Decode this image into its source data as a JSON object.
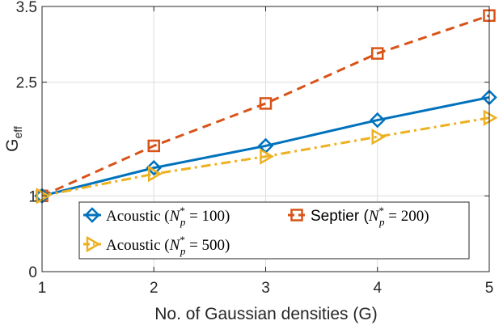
{
  "chart_data": {
    "type": "line",
    "x": [
      1,
      2,
      3,
      4,
      5
    ],
    "series": [
      {
        "name": "Acoustic",
        "legend_sup": "*",
        "legend_sub": "p",
        "legend_value": "100",
        "values": [
          1.0,
          1.37,
          1.66,
          2.0,
          2.3
        ],
        "color": "#0072BD",
        "marker": "diamond",
        "dash": "solid"
      },
      {
        "name": "Septier",
        "legend_sup": "*",
        "legend_sub": "p",
        "legend_value": "200",
        "values": [
          1.0,
          1.66,
          2.22,
          2.88,
          3.38
        ],
        "color": "#D95319",
        "marker": "square",
        "dash": "dashed"
      },
      {
        "name": "Acoustic",
        "legend_sup": "*",
        "legend_sub": "p",
        "legend_value": "500",
        "values": [
          1.0,
          1.29,
          1.52,
          1.78,
          2.03
        ],
        "color": "#EDB120",
        "marker": "triangle-right",
        "dash": "dashdot"
      }
    ],
    "xlabel": "No. of Gaussian densities (G)",
    "ylabel_main": "G",
    "ylabel_sub": "eff",
    "xlim": [
      1,
      5
    ],
    "ylim": [
      0,
      3.5
    ],
    "xticks": [
      "1",
      "2",
      "3",
      "4",
      "5"
    ],
    "yticks": [
      {
        "value": 0,
        "label": "0"
      },
      {
        "value": 1,
        "label": "1"
      },
      {
        "value": 2.5,
        "label": "2.5"
      },
      {
        "value": 3.5,
        "label": "3.5"
      }
    ],
    "grid": true,
    "legend_position": "bottom-left"
  }
}
